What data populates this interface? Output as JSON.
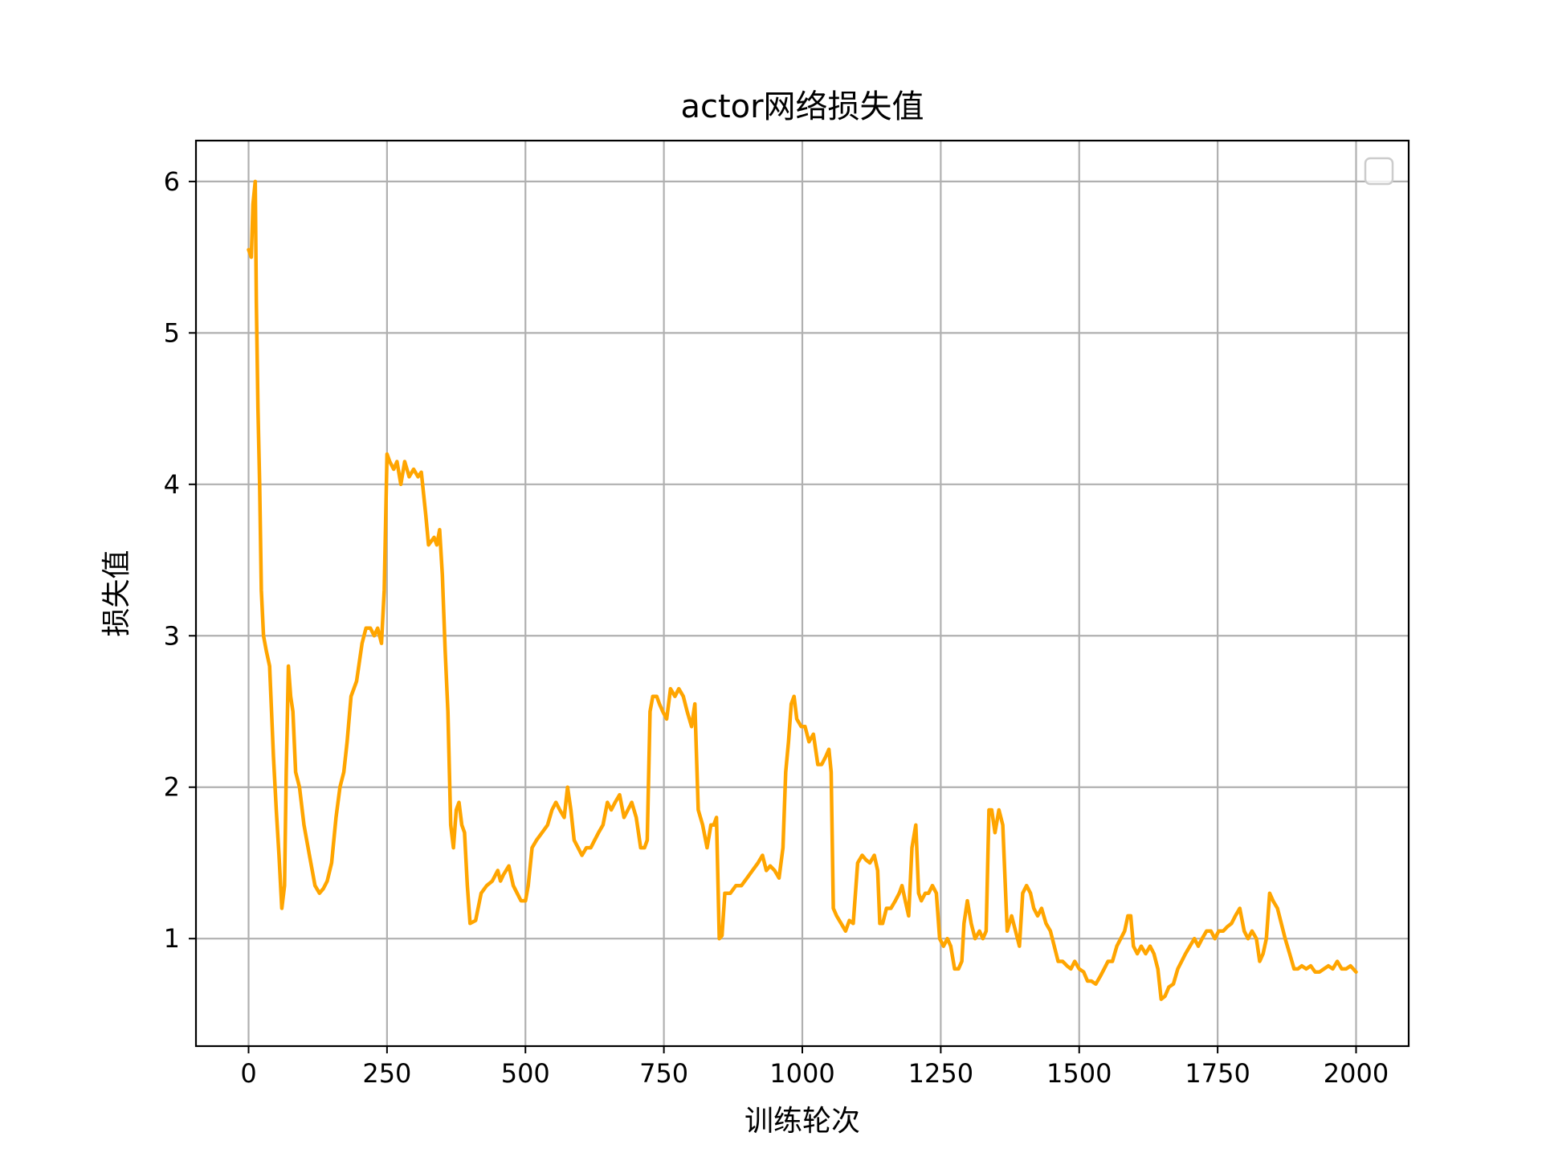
{
  "chart_data": {
    "type": "line",
    "title": "actor网络损失值",
    "xlabel": "训练轮次",
    "ylabel": "损失值",
    "xlim": [
      -95,
      2095
    ],
    "ylim": [
      0.29,
      6.27
    ],
    "xticks": [
      0,
      250,
      500,
      750,
      1000,
      1250,
      1500,
      1750,
      2000
    ],
    "yticks": [
      1,
      2,
      3,
      4,
      5,
      6
    ],
    "grid": true,
    "legend": "top-right (empty)",
    "series": [
      {
        "color": "#FFA500",
        "points": [
          [
            0,
            5.55
          ],
          [
            5,
            5.5
          ],
          [
            8,
            5.85
          ],
          [
            12,
            6.0
          ],
          [
            14,
            5.2
          ],
          [
            17,
            4.5
          ],
          [
            20,
            4.0
          ],
          [
            23,
            3.3
          ],
          [
            27,
            3.0
          ],
          [
            32,
            2.9
          ],
          [
            38,
            2.8
          ],
          [
            45,
            2.2
          ],
          [
            50,
            1.85
          ],
          [
            55,
            1.55
          ],
          [
            60,
            1.2
          ],
          [
            65,
            1.35
          ],
          [
            68,
            2.1
          ],
          [
            72,
            2.8
          ],
          [
            76,
            2.6
          ],
          [
            80,
            2.5
          ],
          [
            85,
            2.1
          ],
          [
            92,
            2.0
          ],
          [
            100,
            1.75
          ],
          [
            110,
            1.55
          ],
          [
            120,
            1.35
          ],
          [
            128,
            1.3
          ],
          [
            135,
            1.33
          ],
          [
            142,
            1.38
          ],
          [
            150,
            1.5
          ],
          [
            158,
            1.8
          ],
          [
            165,
            2.0
          ],
          [
            172,
            2.1
          ],
          [
            178,
            2.3
          ],
          [
            185,
            2.6
          ],
          [
            195,
            2.7
          ],
          [
            205,
            2.95
          ],
          [
            212,
            3.05
          ],
          [
            220,
            3.05
          ],
          [
            227,
            3.0
          ],
          [
            233,
            3.05
          ],
          [
            240,
            2.95
          ],
          [
            245,
            3.3
          ],
          [
            250,
            4.2
          ],
          [
            255,
            4.15
          ],
          [
            262,
            4.1
          ],
          [
            268,
            4.15
          ],
          [
            275,
            4.0
          ],
          [
            282,
            4.15
          ],
          [
            290,
            4.05
          ],
          [
            298,
            4.1
          ],
          [
            306,
            4.05
          ],
          [
            312,
            4.08
          ],
          [
            320,
            3.8
          ],
          [
            325,
            3.6
          ],
          [
            335,
            3.65
          ],
          [
            340,
            3.6
          ],
          [
            345,
            3.7
          ],
          [
            350,
            3.4
          ],
          [
            355,
            2.9
          ],
          [
            360,
            2.5
          ],
          [
            365,
            1.75
          ],
          [
            370,
            1.6
          ],
          [
            375,
            1.85
          ],
          [
            380,
            1.9
          ],
          [
            385,
            1.75
          ],
          [
            390,
            1.7
          ],
          [
            395,
            1.35
          ],
          [
            400,
            1.1
          ],
          [
            410,
            1.12
          ],
          [
            420,
            1.3
          ],
          [
            430,
            1.35
          ],
          [
            440,
            1.38
          ],
          [
            450,
            1.45
          ],
          [
            455,
            1.38
          ],
          [
            460,
            1.42
          ],
          [
            470,
            1.48
          ],
          [
            478,
            1.35
          ],
          [
            485,
            1.3
          ],
          [
            492,
            1.25
          ],
          [
            500,
            1.25
          ],
          [
            505,
            1.35
          ],
          [
            512,
            1.6
          ],
          [
            520,
            1.65
          ],
          [
            530,
            1.7
          ],
          [
            540,
            1.75
          ],
          [
            548,
            1.85
          ],
          [
            555,
            1.9
          ],
          [
            562,
            1.85
          ],
          [
            570,
            1.8
          ],
          [
            576,
            2.0
          ],
          [
            582,
            1.85
          ],
          [
            588,
            1.65
          ],
          [
            595,
            1.6
          ],
          [
            602,
            1.55
          ],
          [
            610,
            1.6
          ],
          [
            618,
            1.6
          ],
          [
            625,
            1.65
          ],
          [
            632,
            1.7
          ],
          [
            640,
            1.75
          ],
          [
            648,
            1.9
          ],
          [
            655,
            1.85
          ],
          [
            662,
            1.9
          ],
          [
            670,
            1.95
          ],
          [
            678,
            1.8
          ],
          [
            685,
            1.85
          ],
          [
            692,
            1.9
          ],
          [
            700,
            1.8
          ],
          [
            708,
            1.6
          ],
          [
            715,
            1.6
          ],
          [
            720,
            1.65
          ],
          [
            725,
            2.5
          ],
          [
            730,
            2.6
          ],
          [
            737,
            2.6
          ],
          [
            742,
            2.55
          ],
          [
            748,
            2.5
          ],
          [
            755,
            2.45
          ],
          [
            762,
            2.65
          ],
          [
            770,
            2.6
          ],
          [
            777,
            2.65
          ],
          [
            785,
            2.6
          ],
          [
            792,
            2.5
          ],
          [
            800,
            2.4
          ],
          [
            806,
            2.55
          ],
          [
            812,
            1.85
          ],
          [
            820,
            1.75
          ],
          [
            828,
            1.6
          ],
          [
            835,
            1.75
          ],
          [
            840,
            1.75
          ],
          [
            845,
            1.8
          ],
          [
            850,
            1.0
          ],
          [
            855,
            1.02
          ],
          [
            860,
            1.3
          ],
          [
            870,
            1.3
          ],
          [
            880,
            1.35
          ],
          [
            890,
            1.35
          ],
          [
            900,
            1.4
          ],
          [
            910,
            1.45
          ],
          [
            920,
            1.5
          ],
          [
            928,
            1.55
          ],
          [
            935,
            1.45
          ],
          [
            942,
            1.48
          ],
          [
            950,
            1.45
          ],
          [
            958,
            1.4
          ],
          [
            965,
            1.6
          ],
          [
            970,
            2.1
          ],
          [
            975,
            2.3
          ],
          [
            980,
            2.55
          ],
          [
            985,
            2.6
          ],
          [
            990,
            2.45
          ],
          [
            998,
            2.4
          ],
          [
            1005,
            2.4
          ],
          [
            1012,
            2.3
          ],
          [
            1020,
            2.35
          ],
          [
            1028,
            2.15
          ],
          [
            1035,
            2.15
          ],
          [
            1042,
            2.2
          ],
          [
            1048,
            2.25
          ],
          [
            1052,
            2.1
          ],
          [
            1056,
            1.2
          ],
          [
            1062,
            1.15
          ],
          [
            1070,
            1.1
          ],
          [
            1078,
            1.05
          ],
          [
            1085,
            1.12
          ],
          [
            1092,
            1.1
          ],
          [
            1100,
            1.5
          ],
          [
            1108,
            1.55
          ],
          [
            1115,
            1.52
          ],
          [
            1122,
            1.5
          ],
          [
            1130,
            1.55
          ],
          [
            1136,
            1.45
          ],
          [
            1140,
            1.1
          ],
          [
            1145,
            1.1
          ],
          [
            1152,
            1.2
          ],
          [
            1160,
            1.2
          ],
          [
            1168,
            1.25
          ],
          [
            1175,
            1.3
          ],
          [
            1180,
            1.35
          ],
          [
            1186,
            1.25
          ],
          [
            1192,
            1.15
          ],
          [
            1198,
            1.6
          ],
          [
            1205,
            1.75
          ],
          [
            1210,
            1.3
          ],
          [
            1215,
            1.25
          ],
          [
            1222,
            1.3
          ],
          [
            1228,
            1.3
          ],
          [
            1235,
            1.35
          ],
          [
            1242,
            1.3
          ],
          [
            1248,
            1.0
          ],
          [
            1255,
            0.95
          ],
          [
            1262,
            1.0
          ],
          [
            1268,
            0.95
          ],
          [
            1275,
            0.8
          ],
          [
            1282,
            0.8
          ],
          [
            1288,
            0.85
          ],
          [
            1292,
            1.1
          ],
          [
            1298,
            1.25
          ],
          [
            1305,
            1.1
          ],
          [
            1312,
            1.0
          ],
          [
            1320,
            1.05
          ],
          [
            1326,
            1.0
          ],
          [
            1332,
            1.05
          ],
          [
            1337,
            1.85
          ],
          [
            1342,
            1.85
          ],
          [
            1348,
            1.7
          ],
          [
            1355,
            1.85
          ],
          [
            1362,
            1.75
          ],
          [
            1370,
            1.05
          ],
          [
            1378,
            1.15
          ],
          [
            1385,
            1.05
          ],
          [
            1392,
            0.95
          ],
          [
            1398,
            1.3
          ],
          [
            1405,
            1.35
          ],
          [
            1412,
            1.3
          ],
          [
            1418,
            1.2
          ],
          [
            1425,
            1.15
          ],
          [
            1432,
            1.2
          ],
          [
            1440,
            1.1
          ],
          [
            1448,
            1.05
          ],
          [
            1455,
            0.95
          ],
          [
            1462,
            0.85
          ],
          [
            1470,
            0.85
          ],
          [
            1478,
            0.82
          ],
          [
            1485,
            0.8
          ],
          [
            1492,
            0.85
          ],
          [
            1500,
            0.8
          ],
          [
            1508,
            0.78
          ],
          [
            1515,
            0.72
          ],
          [
            1522,
            0.72
          ],
          [
            1530,
            0.7
          ],
          [
            1538,
            0.75
          ],
          [
            1545,
            0.8
          ],
          [
            1552,
            0.85
          ],
          [
            1560,
            0.85
          ],
          [
            1568,
            0.95
          ],
          [
            1575,
            1.0
          ],
          [
            1582,
            1.05
          ],
          [
            1588,
            1.15
          ],
          [
            1593,
            1.15
          ],
          [
            1598,
            0.95
          ],
          [
            1605,
            0.9
          ],
          [
            1612,
            0.95
          ],
          [
            1620,
            0.9
          ],
          [
            1628,
            0.95
          ],
          [
            1635,
            0.9
          ],
          [
            1642,
            0.8
          ],
          [
            1648,
            0.6
          ],
          [
            1655,
            0.62
          ],
          [
            1662,
            0.68
          ],
          [
            1670,
            0.7
          ],
          [
            1678,
            0.8
          ],
          [
            1685,
            0.85
          ],
          [
            1692,
            0.9
          ],
          [
            1700,
            0.95
          ],
          [
            1708,
            1.0
          ],
          [
            1715,
            0.95
          ],
          [
            1722,
            1.0
          ],
          [
            1730,
            1.05
          ],
          [
            1738,
            1.05
          ],
          [
            1745,
            1.0
          ],
          [
            1752,
            1.05
          ],
          [
            1760,
            1.05
          ],
          [
            1768,
            1.08
          ],
          [
            1775,
            1.1
          ],
          [
            1782,
            1.15
          ],
          [
            1790,
            1.2
          ],
          [
            1798,
            1.05
          ],
          [
            1805,
            1.0
          ],
          [
            1812,
            1.05
          ],
          [
            1820,
            1.0
          ],
          [
            1826,
            0.85
          ],
          [
            1832,
            0.9
          ],
          [
            1838,
            1.0
          ],
          [
            1844,
            1.3
          ],
          [
            1850,
            1.25
          ],
          [
            1858,
            1.2
          ],
          [
            1865,
            1.1
          ],
          [
            1872,
            1.0
          ],
          [
            1880,
            0.9
          ],
          [
            1888,
            0.8
          ],
          [
            1895,
            0.8
          ],
          [
            1902,
            0.82
          ],
          [
            1910,
            0.8
          ],
          [
            1918,
            0.82
          ],
          [
            1926,
            0.78
          ],
          [
            1934,
            0.78
          ],
          [
            1942,
            0.8
          ],
          [
            1950,
            0.82
          ],
          [
            1958,
            0.8
          ],
          [
            1966,
            0.85
          ],
          [
            1974,
            0.8
          ],
          [
            1982,
            0.8
          ],
          [
            1990,
            0.82
          ],
          [
            2000,
            0.78
          ]
        ]
      }
    ]
  }
}
